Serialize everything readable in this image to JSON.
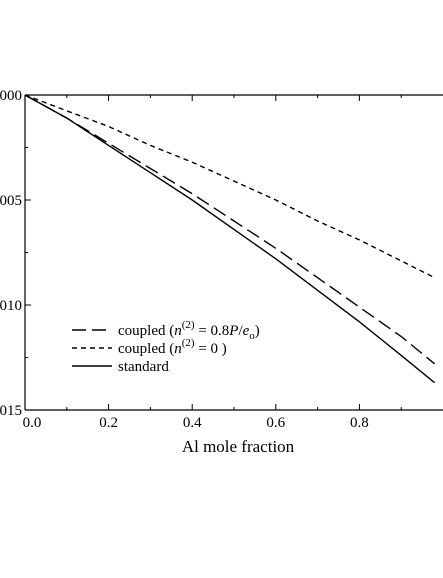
{
  "chart_data": {
    "type": "line",
    "title": "",
    "xlabel": "Al mole fraction",
    "ylabel": "",
    "xlim": [
      0.0,
      1.0
    ],
    "ylim": [
      -0.015,
      0.0
    ],
    "grid": false,
    "legend_position": "bottom-left",
    "x_ticks": [
      0.0,
      0.2,
      0.4,
      0.6,
      0.8
    ],
    "x_tick_labels": [
      "0.0",
      "0.2",
      "0.4",
      "0.6",
      "0.8"
    ],
    "y_ticks": [
      0.0,
      -0.005,
      -0.01,
      -0.015
    ],
    "y_tick_labels": [
      "000",
      "005",
      "010",
      "015"
    ],
    "legend": [
      {
        "series": "coupled_08",
        "dash": "long-dash",
        "label_text": "coupled (",
        "label_var": "n",
        "label_sup": "(2)",
        "label_eq": " = 0.8",
        "label_p": "P",
        "label_slash": "/",
        "label_e": "e",
        "label_esub": "o",
        "label_close": ")"
      },
      {
        "series": "coupled_0",
        "dash": "short-dash",
        "label_text": "coupled (",
        "label_var": "n",
        "label_sup": "(2)",
        "label_eq": " = 0 )"
      },
      {
        "series": "standard",
        "dash": "solid",
        "label_text": "standard"
      }
    ],
    "series": [
      {
        "key": "coupled_08",
        "dash": "long-dash",
        "x": [
          0.0,
          0.1,
          0.2,
          0.3,
          0.4,
          0.5,
          0.6,
          0.7,
          0.8,
          0.9,
          0.98
        ],
        "values": [
          0.0,
          -0.0011,
          -0.0023,
          -0.0035,
          -0.0047,
          -0.006,
          -0.0073,
          -0.0087,
          -0.0101,
          -0.0115,
          -0.0128
        ]
      },
      {
        "key": "coupled_0",
        "dash": "short-dash",
        "x": [
          0.0,
          0.1,
          0.2,
          0.3,
          0.4,
          0.5,
          0.6,
          0.7,
          0.8,
          0.9,
          0.98
        ],
        "values": [
          0.0,
          -0.00075,
          -0.0015,
          -0.0024,
          -0.0032,
          -0.0041,
          -0.005,
          -0.006,
          -0.0069,
          -0.0079,
          -0.0087
        ]
      },
      {
        "key": "standard",
        "dash": "solid",
        "x": [
          0.0,
          0.1,
          0.2,
          0.3,
          0.4,
          0.5,
          0.6,
          0.7,
          0.8,
          0.9,
          0.98
        ],
        "values": [
          0.0,
          -0.0011,
          -0.0024,
          -0.0037,
          -0.005,
          -0.0064,
          -0.0078,
          -0.0093,
          -0.0108,
          -0.0124,
          -0.0137
        ]
      }
    ]
  }
}
